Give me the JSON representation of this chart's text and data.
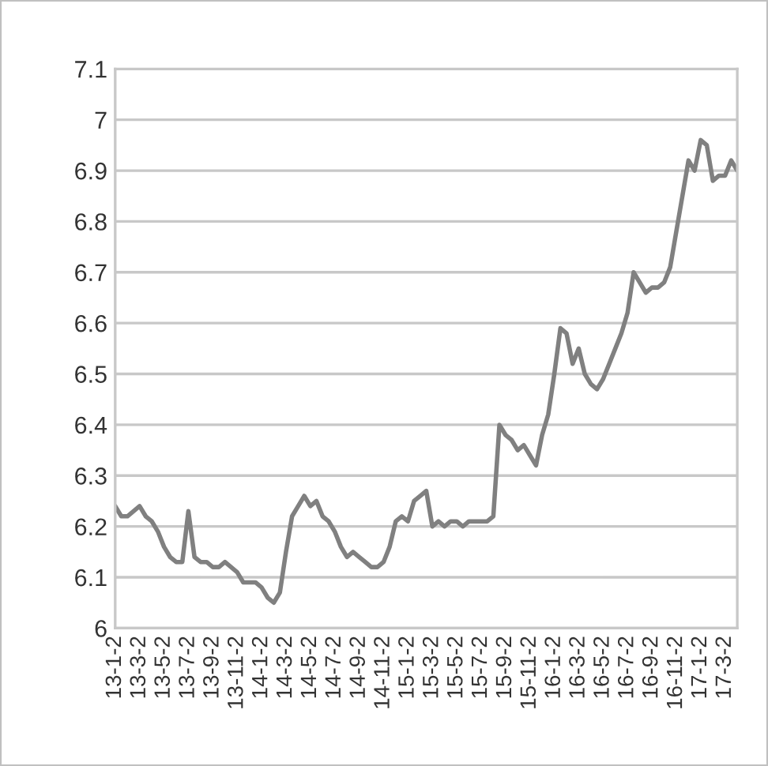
{
  "chart_data": {
    "type": "line",
    "categories": [
      "13-1-2",
      null,
      null,
      null,
      "13-3-2",
      null,
      null,
      null,
      "13-5-2",
      null,
      null,
      null,
      "13-7-2",
      null,
      null,
      null,
      "13-9-2",
      null,
      null,
      null,
      "13-11-2",
      null,
      null,
      null,
      "14-1-2",
      null,
      null,
      null,
      "14-3-2",
      null,
      null,
      null,
      "14-5-2",
      null,
      null,
      null,
      "14-7-2",
      null,
      null,
      null,
      "14-9-2",
      null,
      null,
      null,
      "14-11-2",
      null,
      null,
      null,
      "15-1-2",
      null,
      null,
      null,
      "15-3-2",
      null,
      null,
      null,
      "15-5-2",
      null,
      null,
      null,
      "15-7-2",
      null,
      null,
      null,
      "15-9-2",
      null,
      null,
      null,
      "15-11-2",
      null,
      null,
      null,
      "16-1-2",
      null,
      null,
      null,
      "16-3-2",
      null,
      null,
      null,
      "16-5-2",
      null,
      null,
      null,
      "16-7-2",
      null,
      null,
      null,
      "16-9-2",
      null,
      null,
      null,
      "16-11-2",
      null,
      null,
      null,
      "17-1-2",
      null,
      null,
      null,
      "17-3-2",
      null,
      null
    ],
    "series": [
      {
        "color": "#808080",
        "values": [
          6.24,
          6.22,
          6.22,
          6.23,
          6.24,
          6.22,
          6.21,
          6.19,
          6.16,
          6.14,
          6.13,
          6.13,
          6.23,
          6.14,
          6.13,
          6.13,
          6.12,
          6.12,
          6.13,
          6.12,
          6.11,
          6.09,
          6.09,
          6.09,
          6.08,
          6.06,
          6.05,
          6.07,
          6.15,
          6.22,
          6.24,
          6.26,
          6.24,
          6.25,
          6.22,
          6.21,
          6.19,
          6.16,
          6.14,
          6.15,
          6.14,
          6.13,
          6.12,
          6.12,
          6.13,
          6.16,
          6.21,
          6.22,
          6.21,
          6.25,
          6.26,
          6.27,
          6.2,
          6.21,
          6.2,
          6.21,
          6.21,
          6.2,
          6.21,
          6.21,
          6.21,
          6.21,
          6.22,
          6.4,
          6.38,
          6.37,
          6.35,
          6.36,
          6.34,
          6.32,
          6.38,
          6.42,
          6.5,
          6.59,
          6.58,
          6.52,
          6.55,
          6.5,
          6.48,
          6.47,
          6.49,
          6.52,
          6.55,
          6.58,
          6.62,
          6.7,
          6.68,
          6.66,
          6.67,
          6.67,
          6.68,
          6.71,
          6.78,
          6.85,
          6.92,
          6.9,
          6.96,
          6.95,
          6.88,
          6.89,
          6.89,
          6.92,
          6.9
        ]
      }
    ],
    "ylim": [
      6,
      7.1
    ],
    "yticks": [
      6,
      6.1,
      6.2,
      6.3,
      6.4,
      6.5,
      6.6,
      6.7,
      6.8,
      6.9,
      7,
      7.1
    ],
    "grid": "y",
    "marker": "none",
    "line_style": "solid"
  }
}
